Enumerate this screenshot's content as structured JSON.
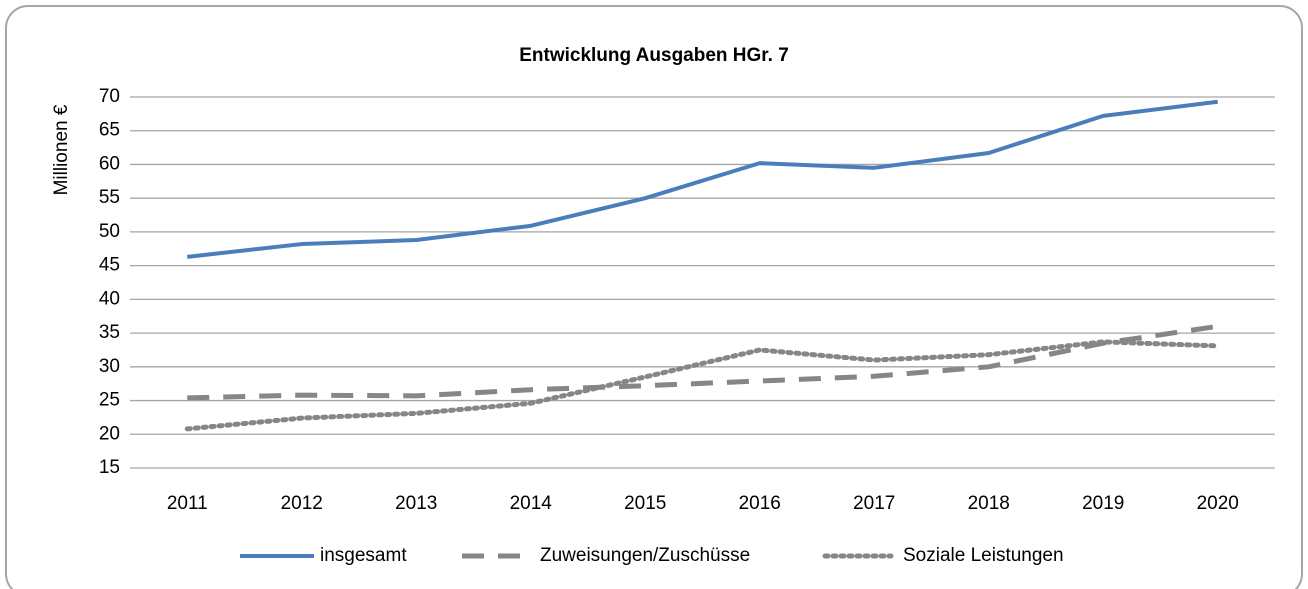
{
  "chart_data": {
    "type": "line",
    "title": "Entwicklung Ausgaben HGr. 7",
    "ylabel": "Millionen €",
    "categories": [
      "2011",
      "2012",
      "2013",
      "2014",
      "2015",
      "2016",
      "2017",
      "2018",
      "2019",
      "2020"
    ],
    "series": [
      {
        "name": "insgesamt",
        "color": "#4a7ebb",
        "style": "solid",
        "values": [
          46.3,
          48.2,
          48.8,
          50.9,
          55.0,
          60.2,
          59.5,
          61.7,
          67.2,
          69.3
        ]
      },
      {
        "name": "Zuweisungen/Zuschüsse",
        "color": "#868686",
        "style": "dashed",
        "values": [
          25.4,
          25.8,
          25.7,
          26.6,
          27.2,
          27.9,
          28.6,
          30.0,
          33.5,
          36.0
        ]
      },
      {
        "name": "Soziale Leistungen",
        "color": "#868686",
        "style": "dotted",
        "values": [
          20.8,
          22.4,
          23.1,
          24.6,
          28.5,
          32.5,
          31.0,
          31.8,
          33.7,
          33.1
        ]
      }
    ],
    "ylim": [
      15,
      70
    ],
    "yticks": [
      15,
      20,
      25,
      30,
      35,
      40,
      45,
      50,
      55,
      60,
      65,
      70
    ],
    "grid": true,
    "legend": "bottom"
  }
}
